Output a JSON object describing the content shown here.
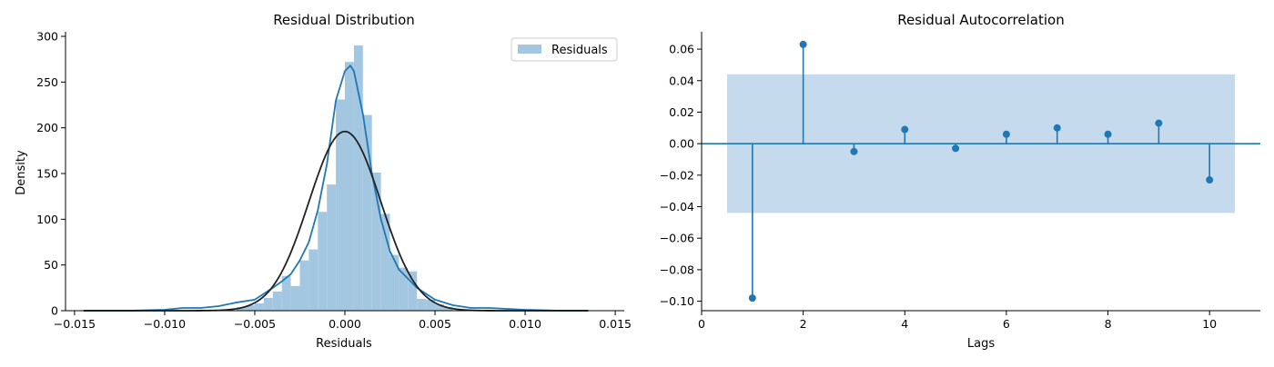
{
  "chart_data": [
    {
      "type": "histogram",
      "title": "Residual Distribution",
      "xlabel": "Residuals",
      "ylabel": "Density",
      "xlim": [
        -0.0155,
        0.0155
      ],
      "ylim": [
        0,
        305
      ],
      "xticks": [
        -0.015,
        -0.01,
        -0.005,
        0.0,
        0.005,
        0.01,
        0.015
      ],
      "xtick_labels": [
        "−0.015",
        "−0.010",
        "−0.005",
        "0.000",
        "0.005",
        "0.010",
        "0.015"
      ],
      "yticks": [
        0,
        50,
        100,
        150,
        200,
        250,
        300
      ],
      "ytick_labels": [
        "0",
        "50",
        "100",
        "150",
        "200",
        "250",
        "300"
      ],
      "legend": {
        "label": "Residuals",
        "position": "top-right"
      },
      "bins": [
        {
          "x0": -0.006,
          "x1": -0.0055,
          "h": 4
        },
        {
          "x0": -0.0055,
          "x1": -0.005,
          "h": 6
        },
        {
          "x0": -0.005,
          "x1": -0.0045,
          "h": 8
        },
        {
          "x0": -0.0045,
          "x1": -0.004,
          "h": 14
        },
        {
          "x0": -0.004,
          "x1": -0.0035,
          "h": 21
        },
        {
          "x0": -0.0035,
          "x1": -0.003,
          "h": 38
        },
        {
          "x0": -0.003,
          "x1": -0.0025,
          "h": 27
        },
        {
          "x0": -0.0025,
          "x1": -0.002,
          "h": 55
        },
        {
          "x0": -0.002,
          "x1": -0.0015,
          "h": 67
        },
        {
          "x0": -0.0015,
          "x1": -0.001,
          "h": 108
        },
        {
          "x0": -0.001,
          "x1": -0.0005,
          "h": 138
        },
        {
          "x0": -0.0005,
          "x1": 0.0,
          "h": 231
        },
        {
          "x0": 0.0,
          "x1": 0.0005,
          "h": 272
        },
        {
          "x0": 0.0005,
          "x1": 0.001,
          "h": 290
        },
        {
          "x0": 0.001,
          "x1": 0.0015,
          "h": 214
        },
        {
          "x0": 0.0015,
          "x1": 0.002,
          "h": 151
        },
        {
          "x0": 0.002,
          "x1": 0.0025,
          "h": 106
        },
        {
          "x0": 0.0025,
          "x1": 0.003,
          "h": 61
        },
        {
          "x0": 0.003,
          "x1": 0.0035,
          "h": 47
        },
        {
          "x0": 0.0035,
          "x1": 0.004,
          "h": 43
        },
        {
          "x0": 0.004,
          "x1": 0.0045,
          "h": 13
        },
        {
          "x0": 0.0045,
          "x1": 0.005,
          "h": 12
        },
        {
          "x0": 0.005,
          "x1": 0.0055,
          "h": 7
        },
        {
          "x0": 0.0055,
          "x1": 0.006,
          "h": 4
        }
      ],
      "kde": {
        "x": [
          -0.0145,
          -0.012,
          -0.01,
          -0.009,
          -0.008,
          -0.007,
          -0.006,
          -0.005,
          -0.004,
          -0.0035,
          -0.003,
          -0.0025,
          -0.002,
          -0.0015,
          -0.001,
          -0.0005,
          0.0,
          0.0003,
          0.0005,
          0.001,
          0.0015,
          0.002,
          0.0025,
          0.003,
          0.0035,
          0.004,
          0.005,
          0.006,
          0.007,
          0.008,
          0.009,
          0.01,
          0.012,
          0.0135
        ],
        "y": [
          0,
          0,
          1,
          3,
          3,
          5,
          9,
          12,
          25,
          32,
          40,
          55,
          75,
          110,
          160,
          230,
          262,
          268,
          262,
          215,
          150,
          100,
          65,
          45,
          35,
          25,
          12,
          6,
          3,
          3,
          2,
          1,
          0,
          0
        ]
      },
      "normal_fit": {
        "mean": 0.0,
        "std": 0.002,
        "peak": 196,
        "xrange": [
          -0.0145,
          0.0135
        ]
      }
    },
    {
      "type": "stem",
      "title": "Residual Autocorrelation",
      "xlabel": "Lags",
      "ylabel": "",
      "xlim": [
        0,
        11
      ],
      "ylim": [
        -0.106,
        0.071
      ],
      "xticks": [
        0,
        2,
        4,
        6,
        8,
        10
      ],
      "xtick_labels": [
        "0",
        "2",
        "4",
        "6",
        "8",
        "10"
      ],
      "yticks": [
        -0.1,
        -0.08,
        -0.06,
        -0.04,
        -0.02,
        0.0,
        0.02,
        0.04,
        0.06
      ],
      "ytick_labels": [
        "−0.10",
        "−0.08",
        "−0.06",
        "−0.04",
        "−0.02",
        "0.00",
        "0.02",
        "0.04",
        "0.06"
      ],
      "lags": [
        1,
        2,
        3,
        4,
        5,
        6,
        7,
        8,
        9,
        10
      ],
      "values": [
        -0.098,
        0.063,
        -0.005,
        0.009,
        -0.003,
        0.006,
        0.01,
        0.006,
        0.013,
        -0.023
      ],
      "confidence_band": {
        "x": [
          0.5,
          10.5
        ],
        "lower": -0.044,
        "upper": 0.044
      }
    }
  ]
}
